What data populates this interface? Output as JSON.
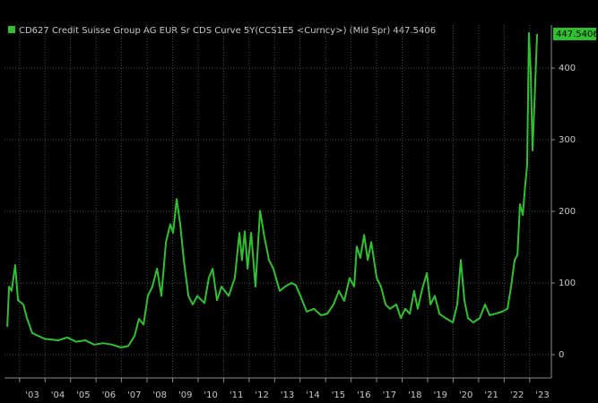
{
  "chart_data": {
    "type": "line",
    "series": [
      {
        "name": "CD627 Credit Suisse Group AG EUR Sr CDS Curve 5Y(CCS1E5 <Curncy>) (Mid Spr)",
        "last_label": "447.5406",
        "color": "#2fc22f",
        "x": [
          2002.52,
          2002.59,
          2002.69,
          2002.83,
          2002.94,
          2003.15,
          2003.29,
          2003.5,
          2003.99,
          2004.52,
          2004.87,
          2005.22,
          2005.57,
          2005.93,
          2006.28,
          2006.63,
          2006.98,
          2007.26,
          2007.51,
          2007.68,
          2007.86,
          2008.03,
          2008.21,
          2008.39,
          2008.56,
          2008.74,
          2008.91,
          2009.02,
          2009.16,
          2009.3,
          2009.44,
          2009.62,
          2009.79,
          2009.97,
          2010.25,
          2010.42,
          2010.57,
          2010.74,
          2010.92,
          2011.2,
          2011.44,
          2011.62,
          2011.72,
          2011.83,
          2011.94,
          2012.08,
          2012.25,
          2012.43,
          2012.6,
          2012.78,
          2012.95,
          2013.2,
          2013.41,
          2013.66,
          2013.83,
          2014.01,
          2014.26,
          2014.54,
          2014.82,
          2015.06,
          2015.31,
          2015.52,
          2015.73,
          2015.94,
          2016.12,
          2016.22,
          2016.36,
          2016.51,
          2016.65,
          2016.79,
          2017.0,
          2017.17,
          2017.35,
          2017.52,
          2017.77,
          2017.95,
          2018.12,
          2018.3,
          2018.47,
          2018.61,
          2018.79,
          2018.97,
          2019.11,
          2019.28,
          2019.46,
          2019.7,
          2019.99,
          2020.16,
          2020.3,
          2020.44,
          2020.58,
          2020.79,
          2021.04,
          2021.25,
          2021.43,
          2021.64,
          2021.92,
          2022.13,
          2022.27,
          2022.41,
          2022.52,
          2022.62,
          2022.73,
          2022.83,
          2022.9,
          2022.97,
          2023.04,
          2023.11,
          2023.18,
          2023.29
        ],
        "values": [
          39,
          95,
          89,
          125,
          76,
          70,
          51,
          30,
          22,
          20,
          24,
          18,
          20,
          14,
          16,
          14,
          10,
          12,
          26,
          50,
          42,
          82,
          95,
          120,
          82,
          157,
          182,
          170,
          217,
          182,
          132,
          82,
          70,
          82,
          72,
          107,
          120,
          76,
          95,
          82,
          107,
          170,
          132,
          172,
          120,
          170,
          95,
          201,
          164,
          132,
          120,
          89,
          95,
          100,
          97,
          82,
          60,
          64,
          55,
          57,
          70,
          89,
          75,
          107,
          95,
          151,
          135,
          167,
          132,
          157,
          107,
          95,
          70,
          64,
          70,
          51,
          64,
          57,
          89,
          64,
          92,
          114,
          70,
          82,
          57,
          51,
          45,
          70,
          132,
          76,
          51,
          45,
          51,
          70,
          55,
          57,
          60,
          64,
          95,
          132,
          139,
          210,
          195,
          239,
          264,
          449,
          395,
          285,
          345,
          447.5406
        ]
      }
    ],
    "xlim": [
      2002.41,
      2023.85
    ],
    "xticks": [
      {
        "value": 2003,
        "label": "'03"
      },
      {
        "value": 2004,
        "label": "'04"
      },
      {
        "value": 2005,
        "label": "'05"
      },
      {
        "value": 2006,
        "label": "'06"
      },
      {
        "value": 2007,
        "label": "'07"
      },
      {
        "value": 2008,
        "label": "'08"
      },
      {
        "value": 2009,
        "label": "'09"
      },
      {
        "value": 2010,
        "label": "'10"
      },
      {
        "value": 2011,
        "label": "'11"
      },
      {
        "value": 2012,
        "label": "'12"
      },
      {
        "value": 2013,
        "label": "'13"
      },
      {
        "value": 2014,
        "label": "'14"
      },
      {
        "value": 2015,
        "label": "'15"
      },
      {
        "value": 2016,
        "label": "'16"
      },
      {
        "value": 2017,
        "label": "'17"
      },
      {
        "value": 2018,
        "label": "'18"
      },
      {
        "value": 2019,
        "label": "'19"
      },
      {
        "value": 2020,
        "label": "'20"
      },
      {
        "value": 2021,
        "label": "'21"
      },
      {
        "value": 2022,
        "label": "'22"
      },
      {
        "value": 2023,
        "label": "'23"
      }
    ],
    "ylim": [
      -32.5,
      460
    ],
    "yticks": [
      0,
      100,
      200,
      300,
      400
    ],
    "grid": true
  }
}
